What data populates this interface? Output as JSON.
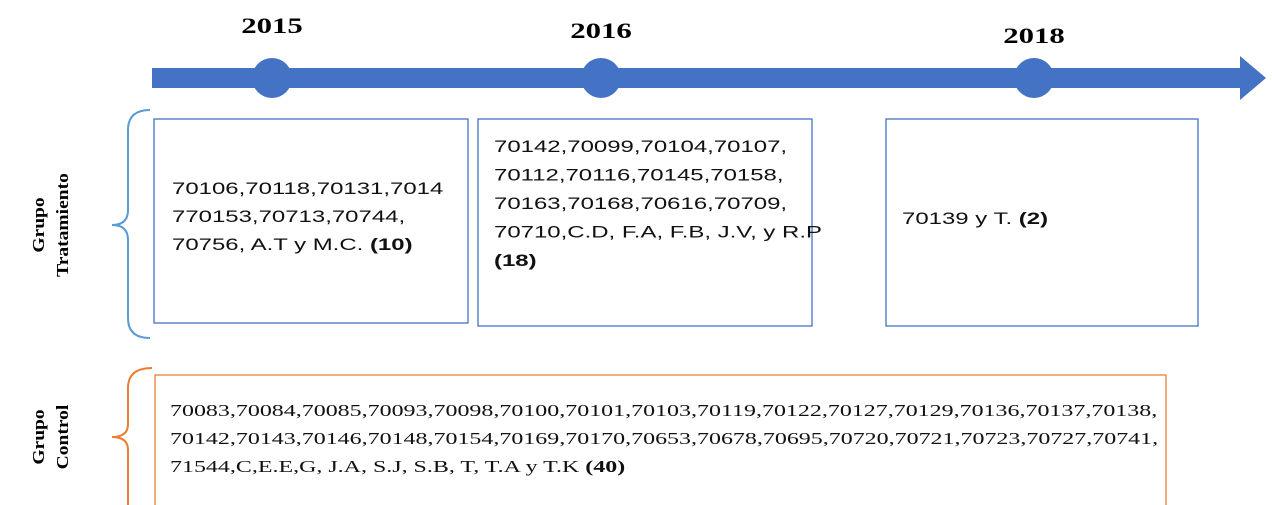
{
  "timeline": {
    "years": [
      "2015",
      "2016",
      "2018"
    ]
  },
  "groups": [
    {
      "label": [
        "Grupo",
        "Tratamiento"
      ],
      "boxes": [
        {
          "lines": [
            "70106,70118,70131,7014",
            "770153,70713,70744,",
            "70756, A.T y M.C."
          ],
          "count": "(10)"
        },
        {
          "lines": [
            "70142,70099,70104,70107,",
            "70112,70116,70145,70158,",
            "70163,70168,70616,70709,",
            "70710,C.D, F.A, F.B, J.V, y R.P"
          ],
          "count": "(18)"
        },
        {
          "lines": [
            "70139 y T."
          ],
          "count": "(2)"
        }
      ]
    },
    {
      "label": [
        "Grupo",
        "Control"
      ],
      "boxes": [
        {
          "lines": [
            "70083,70084,70085,70093,70098,70100,70101,70103,70119,70122,70127,70129,70136,70137,70138,",
            "70142,70143,70146,70148,70154,70169,70170,70653,70678,70695,70720,70721,70723,70727,70741,",
            "71544,C,E.E,G, J.A, S.J, S.B, T, T.A y T.K"
          ],
          "count": "(40)"
        }
      ]
    }
  ]
}
